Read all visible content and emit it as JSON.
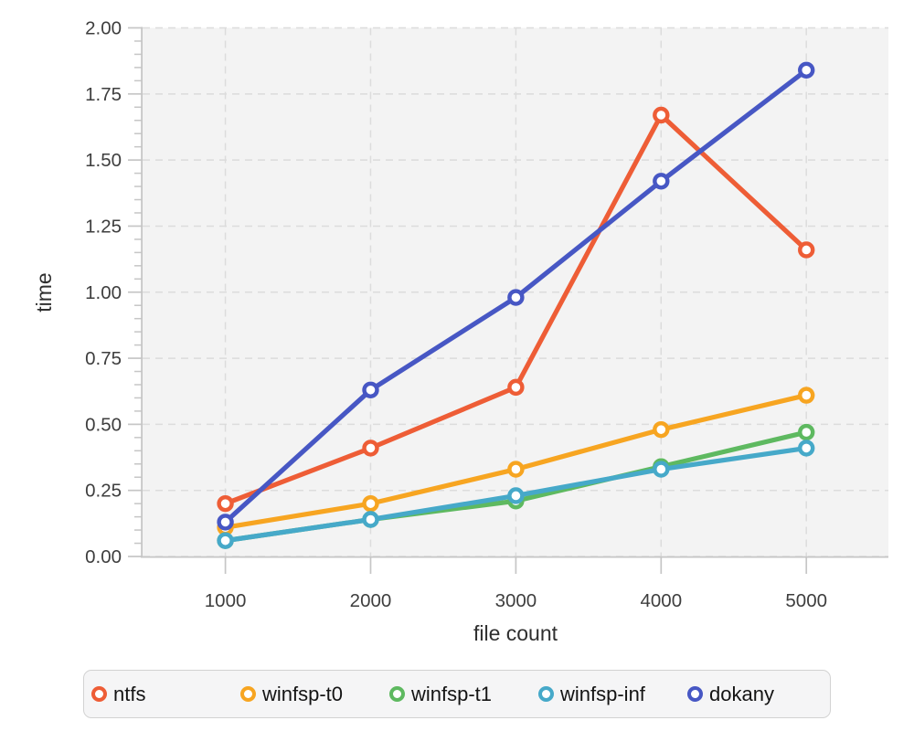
{
  "chart_data": {
    "type": "line",
    "title": "",
    "xlabel": "file count",
    "ylabel": "time",
    "x": [
      1000,
      2000,
      3000,
      4000,
      5000
    ],
    "x_tick_labels": [
      "1000",
      "2000",
      "3000",
      "4000",
      "5000"
    ],
    "y_ticks": [
      0,
      0.25,
      0.5,
      0.75,
      1,
      1.25,
      1.5,
      1.75,
      2
    ],
    "y_tick_labels": [
      "0.00",
      "0.25",
      "0.50",
      "0.75",
      "1.00",
      "1.25",
      "1.50",
      "1.75",
      "2.00"
    ],
    "y_minor_step": 0.05,
    "xlim": [
      430,
      5565
    ],
    "ylim": [
      0,
      2
    ],
    "grid": "dashed",
    "legend_position": "bottom",
    "marker": {
      "shape": "open-circle",
      "fill": "#ffffff"
    },
    "series": [
      {
        "name": "ntfs",
        "color": "#ee5d36",
        "values": [
          0.2,
          0.41,
          0.64,
          1.67,
          1.16
        ]
      },
      {
        "name": "winfsp-t0",
        "color": "#f7a521",
        "values": [
          0.11,
          0.2,
          0.33,
          0.48,
          0.61
        ]
      },
      {
        "name": "winfsp-t1",
        "color": "#5eb960",
        "values": [
          0.06,
          0.14,
          0.21,
          0.34,
          0.47
        ]
      },
      {
        "name": "winfsp-inf",
        "color": "#46a9c9",
        "values": [
          0.06,
          0.14,
          0.23,
          0.33,
          0.41
        ]
      },
      {
        "name": "dokany",
        "color": "#4757c4",
        "values": [
          0.13,
          0.63,
          0.98,
          1.42,
          1.84
        ]
      }
    ]
  },
  "colors": {
    "page_bg": "#ffffff",
    "panel_bg": "#f3f3f3",
    "grid": "#dcdcdc",
    "axis": "#c6c6c6",
    "tick_label": "#3e3e3e",
    "axis_title": "#2f2f2f",
    "legend_bg": "#f5f5f6",
    "legend_border": "#d2d2d2",
    "legend_text": "#141414"
  }
}
